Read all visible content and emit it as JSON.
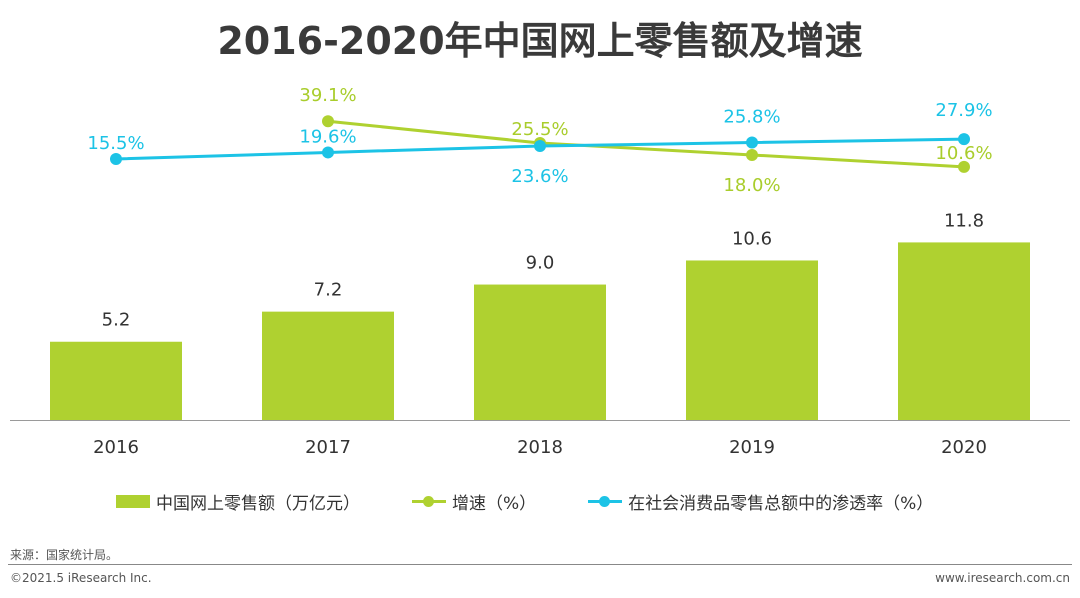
{
  "title": "2016-2020年中国网上零售额及增速",
  "colors": {
    "bar": "#afd130",
    "growth_line": "#afd130",
    "penetration_line": "#1cc3e6",
    "growth_label": "#a9cd2c",
    "penetration_label": "#1cc3e6",
    "text": "#333333"
  },
  "chart_data": {
    "type": "bar",
    "title": "2016-2020年中国网上零售额及增速",
    "categories": [
      "2016",
      "2017",
      "2018",
      "2019",
      "2020"
    ],
    "series": [
      {
        "name": "中国网上零售额（万亿元）",
        "type": "bar",
        "values": [
          5.2,
          7.2,
          9.0,
          10.6,
          11.8
        ],
        "labels": [
          "5.2",
          "7.2",
          "9.0",
          "10.6",
          "11.8"
        ]
      },
      {
        "name": "增速（%）",
        "type": "line",
        "values": [
          null,
          39.1,
          25.5,
          18.0,
          10.6
        ],
        "labels": [
          "",
          "39.1%",
          "25.5%",
          "18.0%",
          "10.6%"
        ]
      },
      {
        "name": "在社会消费品零售总额中的渗透率（%）",
        "type": "line",
        "values": [
          15.5,
          19.6,
          23.6,
          25.8,
          27.9
        ],
        "labels": [
          "15.5%",
          "19.6%",
          "23.6%",
          "25.8%",
          "27.9%"
        ]
      }
    ],
    "xlabel": "",
    "ylabel": ""
  },
  "legend": {
    "bar_label": "中国网上零售额（万亿元）",
    "growth_label": "增速（%）",
    "penetration_label": "在社会消费品零售总额中的渗透率（%）"
  },
  "footer": {
    "source": "来源：国家统计局。",
    "copyright": "©2021.5 iResearch Inc.",
    "website": "www.iresearch.com.cn"
  }
}
